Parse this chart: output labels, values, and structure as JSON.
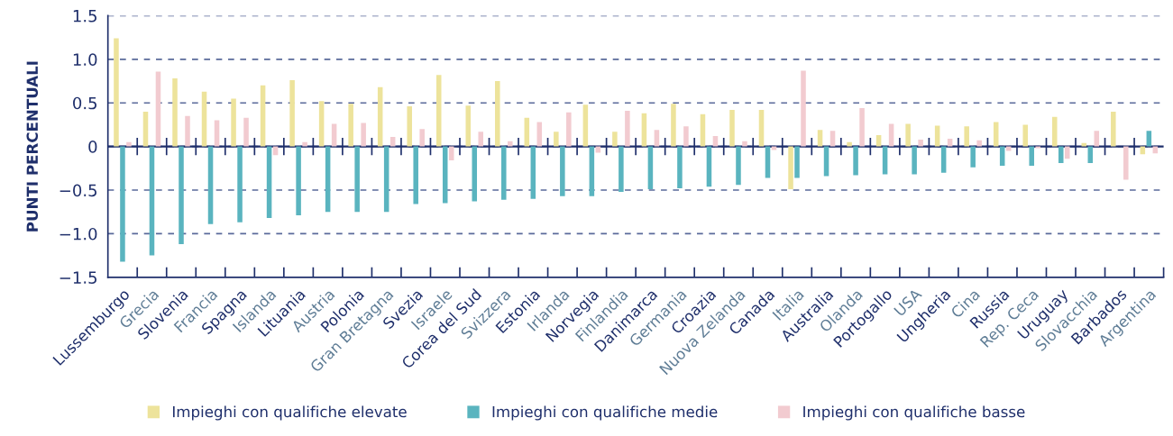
{
  "chart_data": {
    "type": "bar",
    "ylabel": "PUNTI PERCENTUALI",
    "categories": [
      "Lussemburgo",
      "Grecia",
      "Slovenia",
      "Francia",
      "Spagna",
      "Islanda",
      "Lituania",
      "Austria",
      "Polonia",
      "Gran Bretagna",
      "Svezia",
      "Israele",
      "Corea del Sud",
      "Svizzera",
      "Estonia",
      "Irlanda",
      "Norvegia",
      "Finlandia",
      "Danimarca",
      "Germania",
      "Croazia",
      "Nuova Zelanda",
      "Canada",
      "Italia",
      "Australia",
      "Olanda",
      "Portogallo",
      "USA",
      "Ungheria",
      "Cina",
      "Russia",
      "Rep. Ceca",
      "Uruguay",
      "Slovacchia",
      "Barbados",
      "Argentina"
    ],
    "series": [
      {
        "name": "Impieghi con qualifiche elevate",
        "color": "#ede39b",
        "values": [
          1.24,
          0.4,
          0.78,
          0.63,
          0.55,
          0.7,
          0.76,
          0.52,
          0.49,
          0.68,
          0.46,
          0.82,
          0.47,
          0.75,
          0.33,
          0.17,
          0.48,
          0.17,
          0.38,
          0.49,
          0.37,
          0.42,
          0.42,
          -0.49,
          0.19,
          0.05,
          0.13,
          0.26,
          0.24,
          0.23,
          0.28,
          0.25,
          0.34,
          0.04,
          0.4,
          -0.09
        ]
      },
      {
        "name": "Impieghi con qualifiche medie",
        "color": "#5ab4bf",
        "values": [
          -1.32,
          -1.25,
          -1.12,
          -0.89,
          -0.87,
          -0.82,
          -0.79,
          -0.75,
          -0.75,
          -0.75,
          -0.66,
          -0.65,
          -0.63,
          -0.61,
          -0.6,
          -0.57,
          -0.57,
          -0.52,
          -0.49,
          -0.48,
          -0.46,
          -0.44,
          -0.36,
          -0.36,
          -0.34,
          -0.33,
          -0.32,
          -0.32,
          -0.3,
          -0.24,
          -0.22,
          -0.22,
          -0.19,
          -0.19,
          null,
          0.18
        ]
      },
      {
        "name": "Impieghi con qualifiche basse",
        "color": "#f2cbd0",
        "values": [
          0.05,
          0.86,
          0.35,
          0.3,
          0.33,
          -0.1,
          0.05,
          0.26,
          0.27,
          0.11,
          0.2,
          -0.16,
          0.17,
          0.06,
          0.28,
          0.39,
          -0.07,
          0.41,
          0.19,
          0.23,
          0.12,
          0.06,
          -0.04,
          0.87,
          0.18,
          0.44,
          0.26,
          0.08,
          0.09,
          0.07,
          -0.05,
          -0.02,
          -0.14,
          0.18,
          -0.38,
          -0.08
        ]
      }
    ],
    "ylim": [
      -1.5,
      1.5
    ],
    "yticks": [
      {
        "value": -1.5,
        "label": "−1.5"
      },
      {
        "value": -1.0,
        "label": "−1.0"
      },
      {
        "value": -0.5,
        "label": "−0.5"
      },
      0,
      0.5,
      {
        "value": 1.0,
        "label": "1.0"
      },
      1.5
    ],
    "ref_lines": [
      {
        "axis": "y",
        "value": 0,
        "color": "#1f2f6b"
      }
    ],
    "grid": "y",
    "legend": "bottom"
  }
}
